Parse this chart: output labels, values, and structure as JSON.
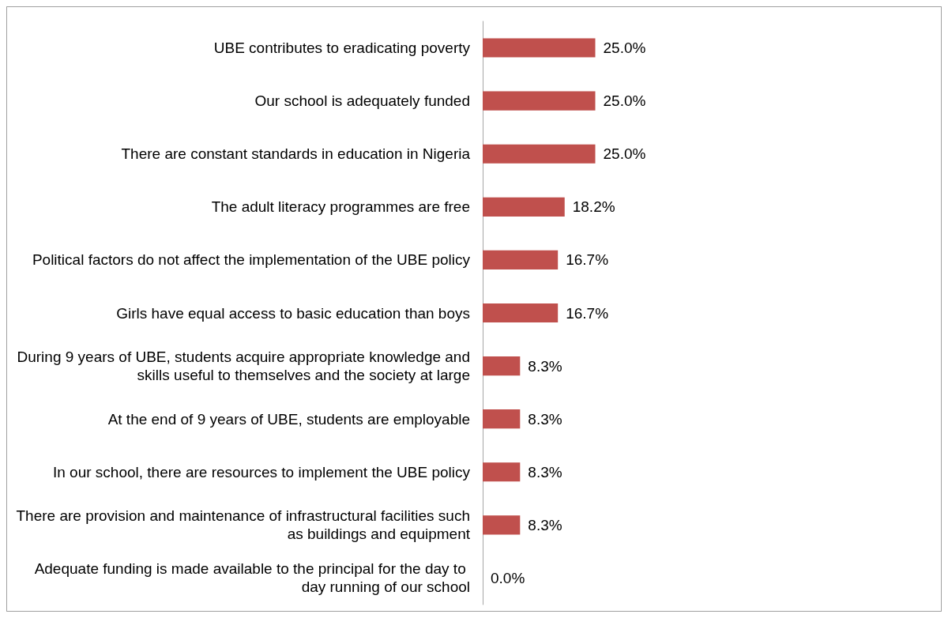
{
  "chart_data": {
    "type": "bar",
    "orientation": "horizontal",
    "categories": [
      "UBE contributes to eradicating poverty",
      "Our school is adequately funded",
      "There are constant standards in education in Nigeria",
      "The adult literacy programmes are free",
      "Political factors do not affect the implementation of the UBE policy",
      "Girls have equal access to basic education than boys",
      "During 9 years of UBE, students acquire appropriate knowledge and skills useful to themselves and the society at large",
      "At the end of 9 years of UBE, students are employable",
      "In our school, there are resources to implement the UBE policy",
      "There are provision and maintenance of infrastructural facilities such as buildings and equipment",
      "Adequate funding is made available to the principal for the day to day running of our school"
    ],
    "values": [
      25.0,
      25.0,
      25.0,
      18.2,
      16.7,
      16.7,
      8.3,
      8.3,
      8.3,
      8.3,
      0.0
    ],
    "value_labels": [
      "25.0%",
      "25.0%",
      "25.0%",
      "18.2%",
      "16.7%",
      "16.7%",
      "8.3%",
      "8.3%",
      "8.3%",
      "8.3%",
      "0.0%"
    ],
    "color": "#c0504d",
    "tick_labels": "y",
    "grid": false
  }
}
